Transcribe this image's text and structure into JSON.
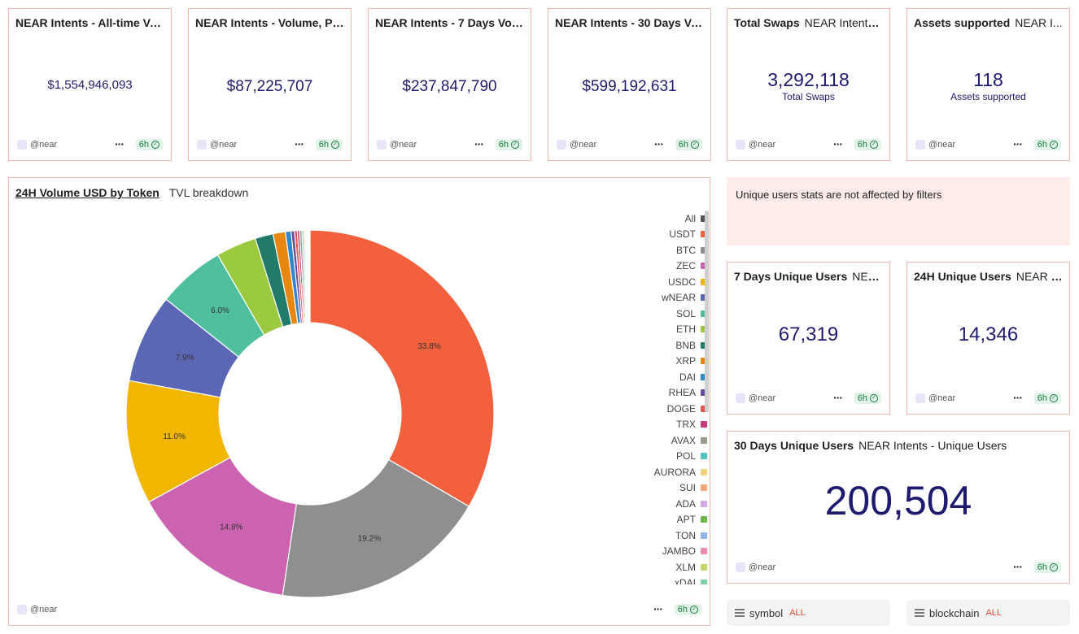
{
  "kpi_cards": [
    {
      "title": "NEAR Intents - All-time Vol...",
      "subtitle": "",
      "value": "$1,554,946,093",
      "caption": "",
      "owner": "@near",
      "refresh": "6h"
    },
    {
      "title": "NEAR Intents - Volume, Pa...",
      "subtitle": "",
      "value": "$87,225,707",
      "caption": "",
      "owner": "@near",
      "refresh": "6h"
    },
    {
      "title": "NEAR Intents - 7 Days Volu...",
      "subtitle": "",
      "value": "$237,847,790",
      "caption": "",
      "owner": "@near",
      "refresh": "6h"
    },
    {
      "title": "NEAR Intents - 30 Days Vo...",
      "subtitle": "",
      "value": "$599,192,631",
      "caption": "",
      "owner": "@near",
      "refresh": "6h"
    },
    {
      "title": "Total Swaps",
      "subtitle": "NEAR Intents...",
      "value": "3,292,118",
      "caption": "Total Swaps",
      "owner": "@near",
      "refresh": "6h"
    },
    {
      "title": "Assets supported",
      "subtitle": "NEAR I...",
      "value": "118",
      "caption": "Assets supported",
      "owner": "@near",
      "refresh": "6h"
    }
  ],
  "notice": "Unique users stats are not affected by filters",
  "users_cards": [
    {
      "title": "7 Days Unique Users",
      "subtitle": "NEA...",
      "value": "67,319",
      "owner": "@near",
      "refresh": "6h"
    },
    {
      "title": "24H Unique Users",
      "subtitle": "NEAR I...",
      "value": "14,346",
      "owner": "@near",
      "refresh": "6h"
    },
    {
      "title": "30 Days Unique Users",
      "subtitle": "NEAR Intents - Unique Users",
      "value": "200,504",
      "owner": "@near",
      "refresh": "6h"
    }
  ],
  "chart_panel": {
    "tab_active": "24H Volume USD by Token",
    "tab_other": "TVL breakdown",
    "owner": "@near",
    "refresh": "6h"
  },
  "filters": [
    {
      "label": "symbol",
      "value": "ALL"
    },
    {
      "label": "blockchain",
      "value": "ALL"
    }
  ],
  "chart_data": {
    "type": "pie",
    "title": "24H Volume USD by Token",
    "legend_position": "right",
    "legend_all_label": "All",
    "slices": [
      {
        "label": "USDT",
        "value": 33.8,
        "display": "33.8%",
        "color": "#f2603d"
      },
      {
        "label": "BTC",
        "value": 19.2,
        "display": "19.2%",
        "color": "#8f8f8f"
      },
      {
        "label": "ZEC",
        "value": 14.8,
        "display": "14.8%",
        "color": "#cc63b1"
      },
      {
        "label": "USDC",
        "value": 11.0,
        "display": "11.0%",
        "color": "#f1b600"
      },
      {
        "label": "wNEAR",
        "value": 7.9,
        "display": "7.9%",
        "color": "#5b67b4"
      },
      {
        "label": "SOL",
        "value": 6.0,
        "display": "6.0%",
        "color": "#4fbf9f"
      },
      {
        "label": "ETH",
        "value": 3.6,
        "display": "",
        "color": "#9bc93f"
      },
      {
        "label": "BNB",
        "value": 1.6,
        "display": "",
        "color": "#227a6a"
      },
      {
        "label": "XRP",
        "value": 1.1,
        "display": "",
        "color": "#e8870f"
      },
      {
        "label": "DAI",
        "value": 0.5,
        "display": "",
        "color": "#2f86c8"
      },
      {
        "label": "RHEA",
        "value": 0.3,
        "display": "",
        "color": "#6a4aa4"
      },
      {
        "label": "DOGE",
        "value": 0.25,
        "display": "",
        "color": "#e8554e"
      },
      {
        "label": "TRX",
        "value": 0.2,
        "display": "",
        "color": "#c43a7a"
      },
      {
        "label": "AVAX",
        "value": 0.2,
        "display": "",
        "color": "#9a9a8a"
      },
      {
        "label": "POL",
        "value": 0.15,
        "display": "",
        "color": "#53c1c0"
      },
      {
        "label": "AURORA",
        "value": 0.12,
        "display": "",
        "color": "#efd27a"
      },
      {
        "label": "SUI",
        "value": 0.1,
        "display": "",
        "color": "#f5a67a"
      },
      {
        "label": "ADA",
        "value": 0.08,
        "display": "",
        "color": "#d6a9e6"
      },
      {
        "label": "APT",
        "value": 0.07,
        "display": "",
        "color": "#6fb54c"
      },
      {
        "label": "TON",
        "value": 0.06,
        "display": "",
        "color": "#8fb3ea"
      },
      {
        "label": "JAMBO",
        "value": 0.05,
        "display": "",
        "color": "#f08aa8"
      },
      {
        "label": "XLM",
        "value": 0.05,
        "display": "",
        "color": "#c0d86a"
      },
      {
        "label": "xDAI",
        "value": 0.04,
        "display": "",
        "color": "#7fd3a8"
      }
    ],
    "all_color": "#555555"
  }
}
